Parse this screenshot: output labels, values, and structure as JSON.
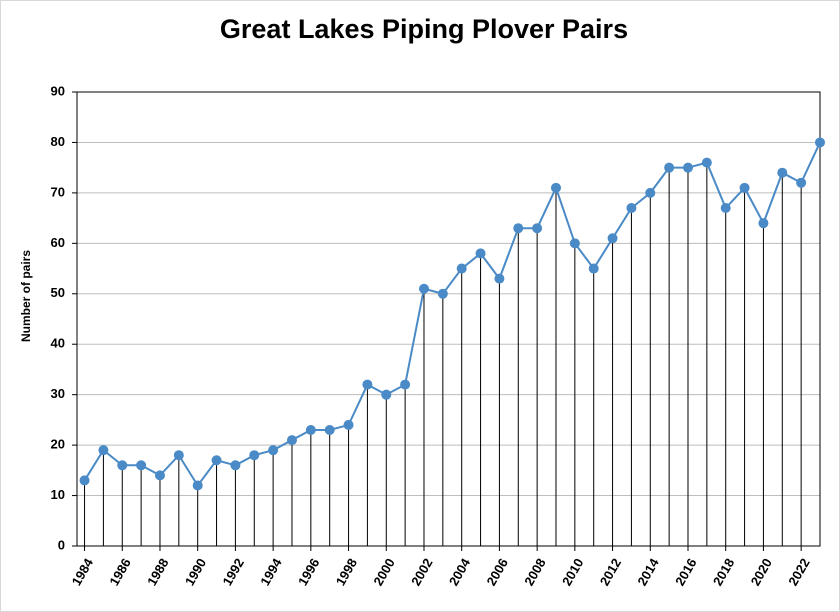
{
  "chart_data": {
    "type": "line",
    "title": "Great Lakes Piping Plover Pairs",
    "y_label": "Number of pairs",
    "x": [
      1984,
      1985,
      1986,
      1987,
      1988,
      1989,
      1990,
      1991,
      1992,
      1993,
      1994,
      1995,
      1996,
      1997,
      1998,
      1999,
      2000,
      2001,
      2002,
      2003,
      2004,
      2005,
      2006,
      2007,
      2008,
      2009,
      2010,
      2011,
      2012,
      2013,
      2014,
      2015,
      2016,
      2017,
      2018,
      2019,
      2020,
      2021,
      2022,
      2023
    ],
    "series": [
      {
        "color": "#4a8ac6",
        "values": [
          13,
          19,
          16,
          16,
          14,
          18,
          12,
          17,
          16,
          18,
          19,
          21,
          23,
          23,
          24,
          32,
          30,
          32,
          51,
          50,
          55,
          58,
          53,
          63,
          63,
          71,
          60,
          55,
          61,
          67,
          70,
          75,
          75,
          76,
          67,
          71,
          64,
          74,
          72,
          80
        ]
      }
    ],
    "xlim": [
      1983.6,
      2023
    ],
    "xticks": [
      1984,
      1986,
      1988,
      1990,
      1992,
      1994,
      1996,
      1998,
      2000,
      2002,
      2004,
      2006,
      2008,
      2010,
      2012,
      2014,
      2016,
      2018,
      2020,
      2022
    ],
    "ylim": [
      0,
      90
    ],
    "yticks": [
      0,
      10,
      20,
      30,
      40,
      50,
      60,
      70,
      80,
      90
    ],
    "grid": true,
    "drop_lines": true
  }
}
